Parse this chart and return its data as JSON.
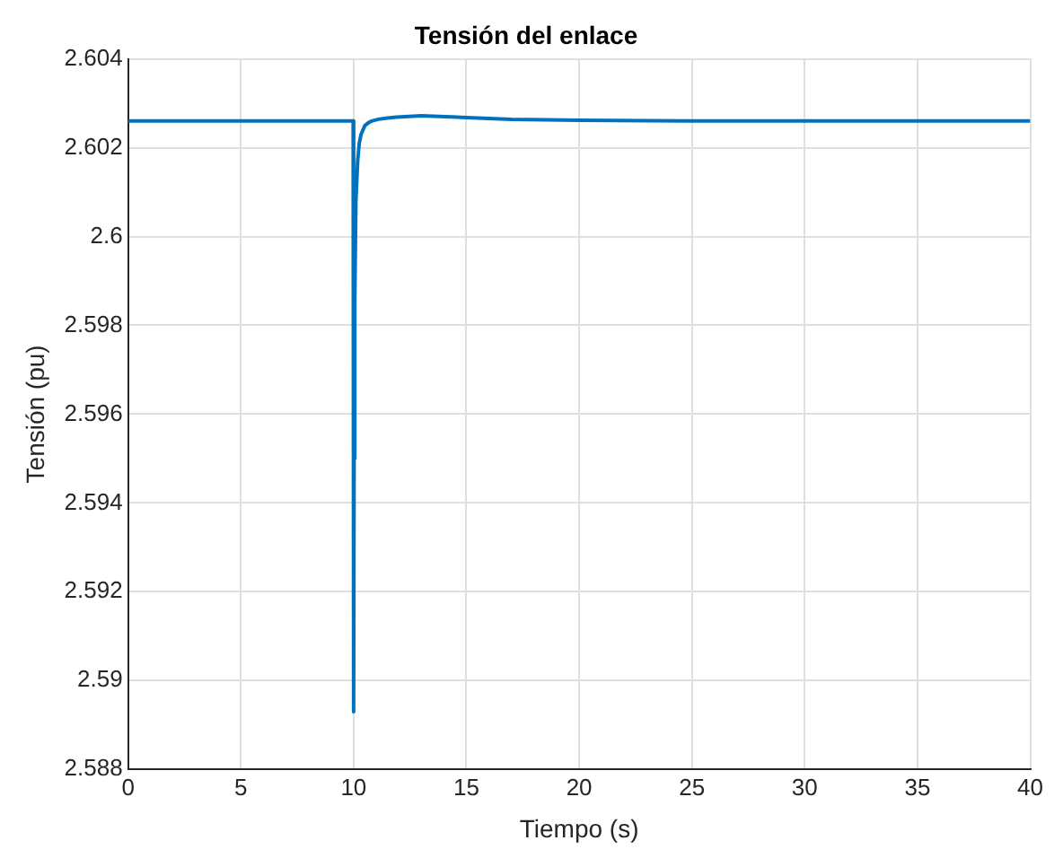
{
  "chart_data": {
    "type": "line",
    "title": "Tensión del enlace",
    "xlabel": "Tiempo (s)",
    "ylabel": "Tensión (pu)",
    "xlim": [
      0,
      40
    ],
    "ylim": [
      2.588,
      2.604
    ],
    "xticks": [
      0,
      5,
      10,
      15,
      20,
      25,
      30,
      35,
      40
    ],
    "yticks": [
      2.588,
      2.59,
      2.592,
      2.594,
      2.596,
      2.598,
      2.6,
      2.602,
      2.604
    ],
    "grid": true,
    "legend": false,
    "series": [
      {
        "color": "#0072bd",
        "x": [
          0,
          9.98,
          10.0,
          10.02,
          10.05,
          10.1,
          10.18,
          10.25,
          10.33,
          10.5,
          10.65,
          10.8,
          11.1,
          11.5,
          11.9,
          13,
          15,
          17,
          20,
          25,
          30,
          40
        ],
        "values": [
          2.6026,
          2.6026,
          2.5893,
          2.595,
          2.5985,
          2.6008,
          2.6017,
          2.6021,
          2.6023,
          2.6025,
          2.60256,
          2.6026,
          2.60264,
          2.60267,
          2.60269,
          2.60272,
          2.60268,
          2.60264,
          2.60262,
          2.6026,
          2.6026,
          2.6026
        ]
      }
    ]
  }
}
